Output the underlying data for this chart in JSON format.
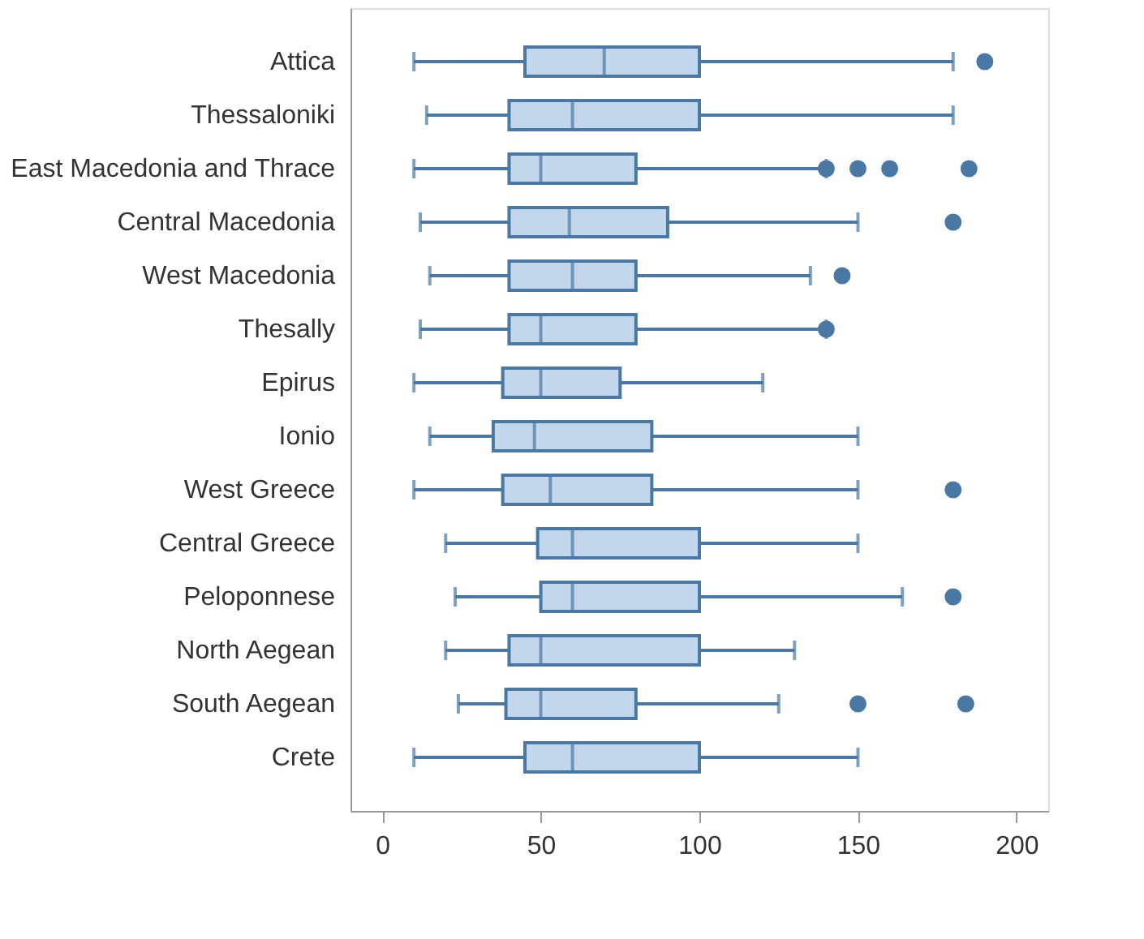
{
  "chart_data": {
    "type": "box",
    "orientation": "horizontal",
    "categories": [
      "Attica",
      "Thessaloniki",
      "East Macedonia and Thrace",
      "Central Macedonia",
      "West Macedonia",
      "Thesally",
      "Epirus",
      "Ionio",
      "West Greece",
      "Central Greece",
      "Peloponnese",
      "North Aegean",
      "South Aegean",
      "Crete"
    ],
    "boxes": [
      {
        "low": 10,
        "q1": 45,
        "median": 70,
        "q3": 100,
        "high": 180,
        "outliers": [
          190
        ]
      },
      {
        "low": 14,
        "q1": 40,
        "median": 60,
        "q3": 100,
        "high": 180
      },
      {
        "low": 10,
        "q1": 40,
        "median": 50,
        "q3": 80,
        "high": 140,
        "outliers": [
          140,
          150,
          160,
          185
        ]
      },
      {
        "low": 12,
        "q1": 40,
        "median": 59,
        "q3": 90,
        "high": 150,
        "outliers": [
          180
        ]
      },
      {
        "low": 15,
        "q1": 40,
        "median": 60,
        "q3": 80,
        "high": 135,
        "outliers": [
          145
        ]
      },
      {
        "low": 12,
        "q1": 40,
        "median": 50,
        "q3": 80,
        "high": 140,
        "outliers": [
          140
        ]
      },
      {
        "low": 10,
        "q1": 38,
        "median": 50,
        "q3": 75,
        "high": 120
      },
      {
        "low": 15,
        "q1": 35,
        "median": 48,
        "q3": 85,
        "high": 150
      },
      {
        "low": 10,
        "q1": 38,
        "median": 53,
        "q3": 85,
        "high": 150,
        "outliers": [
          180
        ]
      },
      {
        "low": 20,
        "q1": 49,
        "median": 60,
        "q3": 100,
        "high": 150
      },
      {
        "low": 23,
        "q1": 50,
        "median": 60,
        "q3": 100,
        "high": 164,
        "outliers": [
          180
        ]
      },
      {
        "low": 20,
        "q1": 40,
        "median": 50,
        "q3": 100,
        "high": 130
      },
      {
        "low": 24,
        "q1": 39,
        "median": 50,
        "q3": 80,
        "high": 125,
        "outliers": [
          150,
          184
        ]
      },
      {
        "low": 10,
        "q1": 45,
        "median": 60,
        "q3": 100,
        "high": 150
      }
    ],
    "color": "#c2d7eb",
    "xlim": [
      -10,
      210
    ],
    "xticks": [
      0,
      50,
      100,
      150,
      200
    ],
    "grid": false
  }
}
